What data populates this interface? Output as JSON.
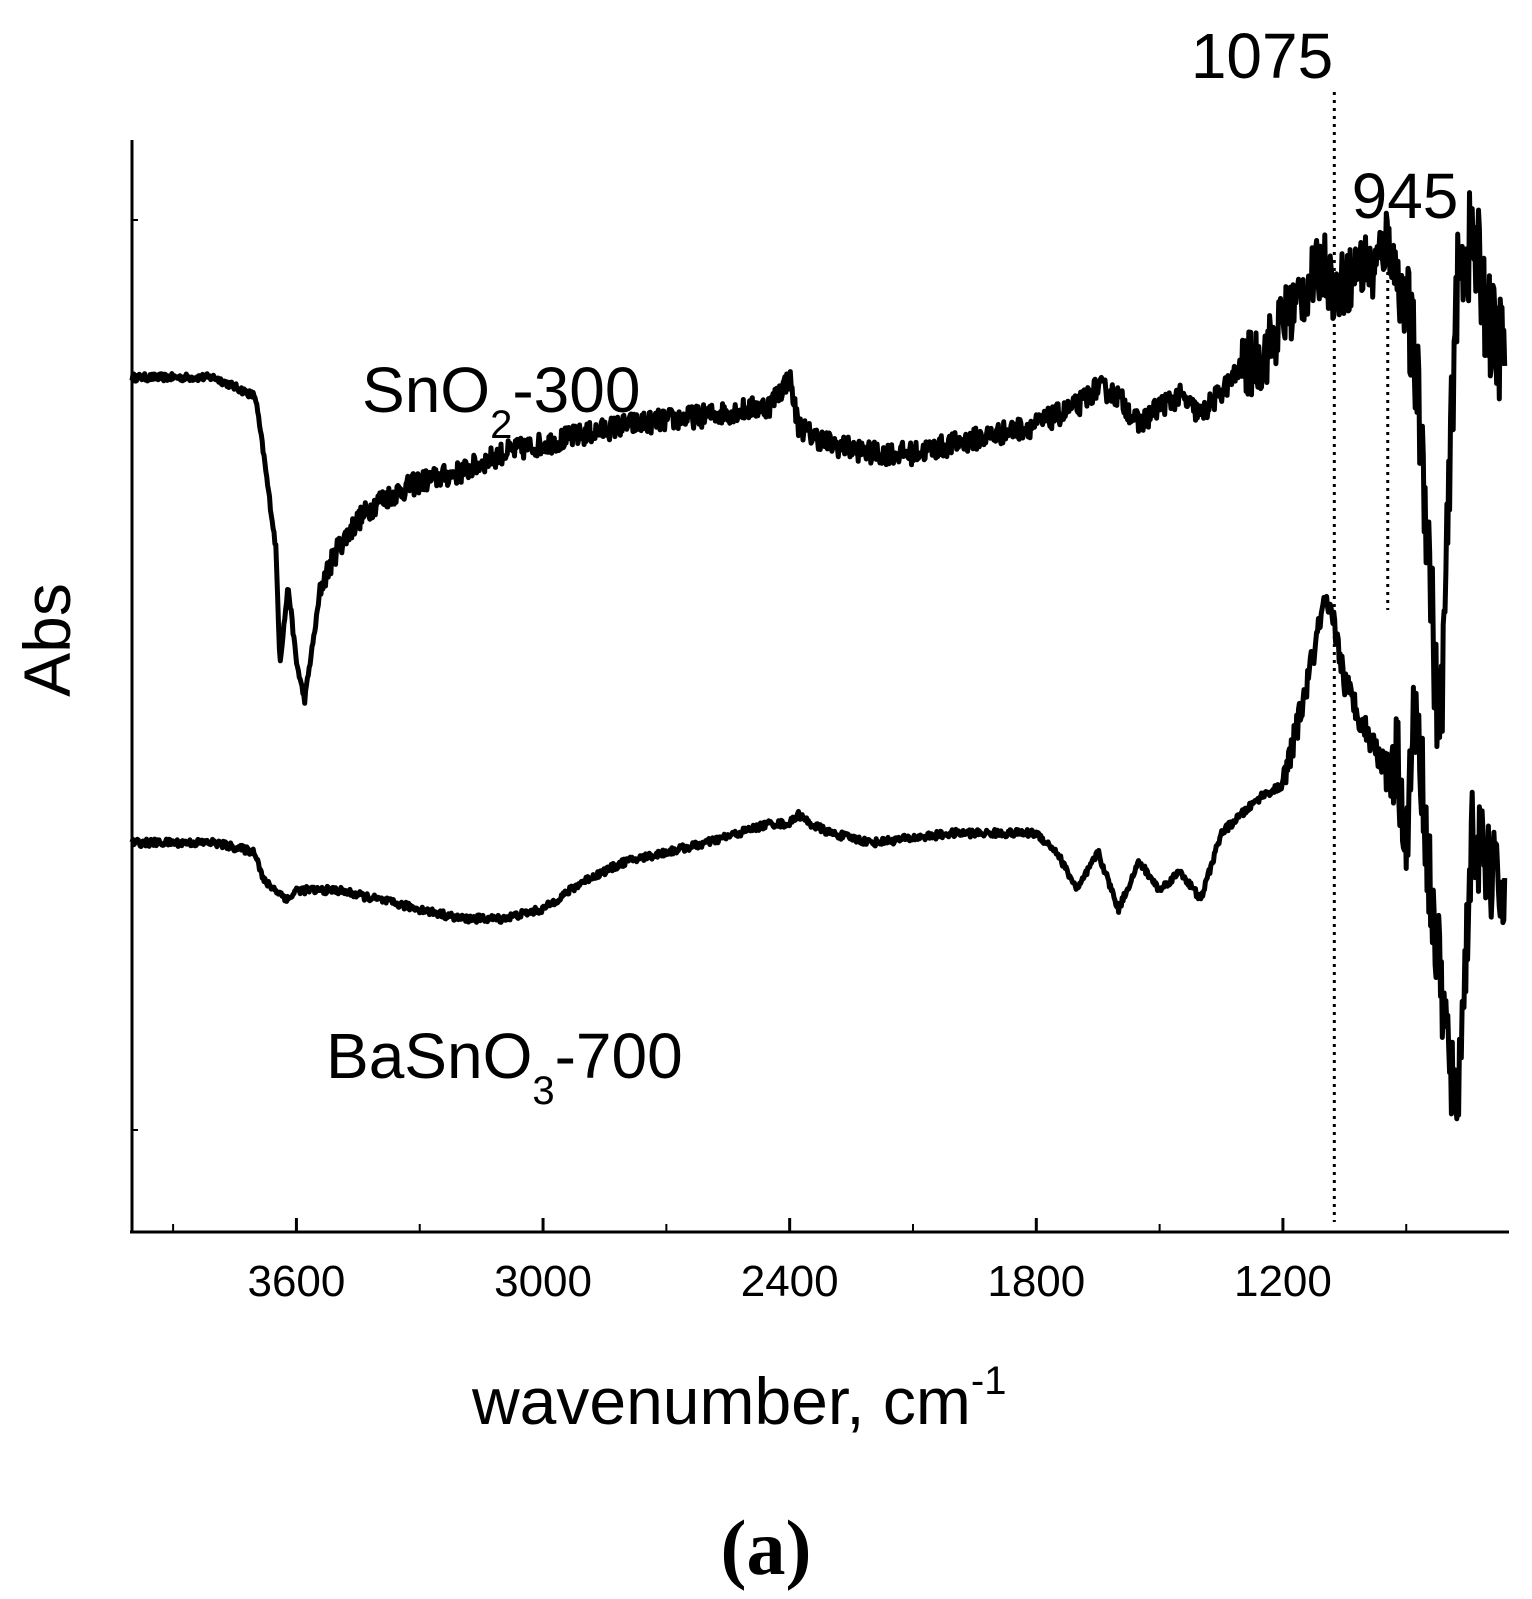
{
  "chart_data": {
    "type": "line",
    "xlabel": "wavenumber, cm",
    "xlabel_superscript": "-1",
    "ylabel": "Abs",
    "xlim": [
      4000,
      650
    ],
    "x_reversed": true,
    "x_ticks": [
      3600,
      3000,
      2400,
      1800,
      1200
    ],
    "y_ticks_shown": false,
    "grid": false,
    "panel_label": "(a)",
    "annotations": [
      {
        "label": "1075",
        "x": 1075,
        "style": "dotted"
      },
      {
        "label": "945",
        "x": 945,
        "style": "dotted"
      }
    ],
    "series": [
      {
        "name_parts": [
          "SnO",
          "2",
          "-300"
        ],
        "x": [
          4000,
          3800,
          3700,
          3680,
          3650,
          3640,
          3620,
          3610,
          3600,
          3580,
          3560,
          3540,
          3500,
          3450,
          3400,
          3300,
          3200,
          3100,
          3000,
          2900,
          2800,
          2600,
          2450,
          2400,
          2380,
          2350,
          2300,
          2200,
          2100,
          2000,
          1900,
          1800,
          1700,
          1650,
          1600,
          1550,
          1500,
          1450,
          1400,
          1300,
          1250,
          1200,
          1150,
          1100,
          1075,
          1050,
          1000,
          980,
          945,
          920,
          900,
          880,
          860,
          840,
          820,
          800,
          780,
          760,
          740,
          720,
          700,
          680,
          660
        ],
        "y": [
          0.9,
          0.9,
          0.88,
          0.82,
          0.72,
          0.6,
          0.68,
          0.64,
          0.6,
          0.56,
          0.62,
          0.68,
          0.72,
          0.75,
          0.77,
          0.79,
          0.8,
          0.82,
          0.83,
          0.84,
          0.85,
          0.86,
          0.87,
          0.9,
          0.85,
          0.84,
          0.83,
          0.82,
          0.82,
          0.83,
          0.84,
          0.85,
          0.87,
          0.89,
          0.88,
          0.85,
          0.87,
          0.88,
          0.86,
          0.91,
          0.92,
          0.96,
          0.99,
          1.02,
          0.99,
          1.0,
          1.02,
          1.01,
          1.05,
          1.0,
          0.97,
          0.92,
          0.82,
          0.68,
          0.5,
          0.72,
          0.98,
          1.03,
          1.04,
          1.01,
          0.96,
          0.93,
          0.94
        ]
      },
      {
        "name_parts": [
          "BaSnO",
          "3",
          "-700"
        ],
        "x": [
          4000,
          3800,
          3700,
          3680,
          3650,
          3620,
          3600,
          3500,
          3400,
          3300,
          3200,
          3100,
          3000,
          2900,
          2800,
          2600,
          2450,
          2400,
          2380,
          2350,
          2300,
          2200,
          2000,
          1800,
          1750,
          1700,
          1650,
          1600,
          1550,
          1500,
          1450,
          1400,
          1350,
          1300,
          1250,
          1200,
          1150,
          1100,
          1075,
          1050,
          1000,
          950,
          920,
          900,
          880,
          860,
          840,
          820,
          800,
          780,
          760,
          740,
          720,
          700,
          680,
          660
        ],
        "y": [
          0.41,
          0.41,
          0.4,
          0.37,
          0.36,
          0.35,
          0.36,
          0.36,
          0.35,
          0.34,
          0.33,
          0.33,
          0.34,
          0.37,
          0.39,
          0.41,
          0.43,
          0.43,
          0.44,
          0.43,
          0.42,
          0.41,
          0.42,
          0.42,
          0.4,
          0.36,
          0.4,
          0.34,
          0.39,
          0.36,
          0.38,
          0.35,
          0.42,
          0.44,
          0.46,
          0.47,
          0.56,
          0.66,
          0.64,
          0.58,
          0.53,
          0.49,
          0.5,
          0.4,
          0.55,
          0.47,
          0.35,
          0.28,
          0.2,
          0.12,
          0.25,
          0.42,
          0.4,
          0.38,
          0.37,
          0.35
        ]
      }
    ]
  }
}
